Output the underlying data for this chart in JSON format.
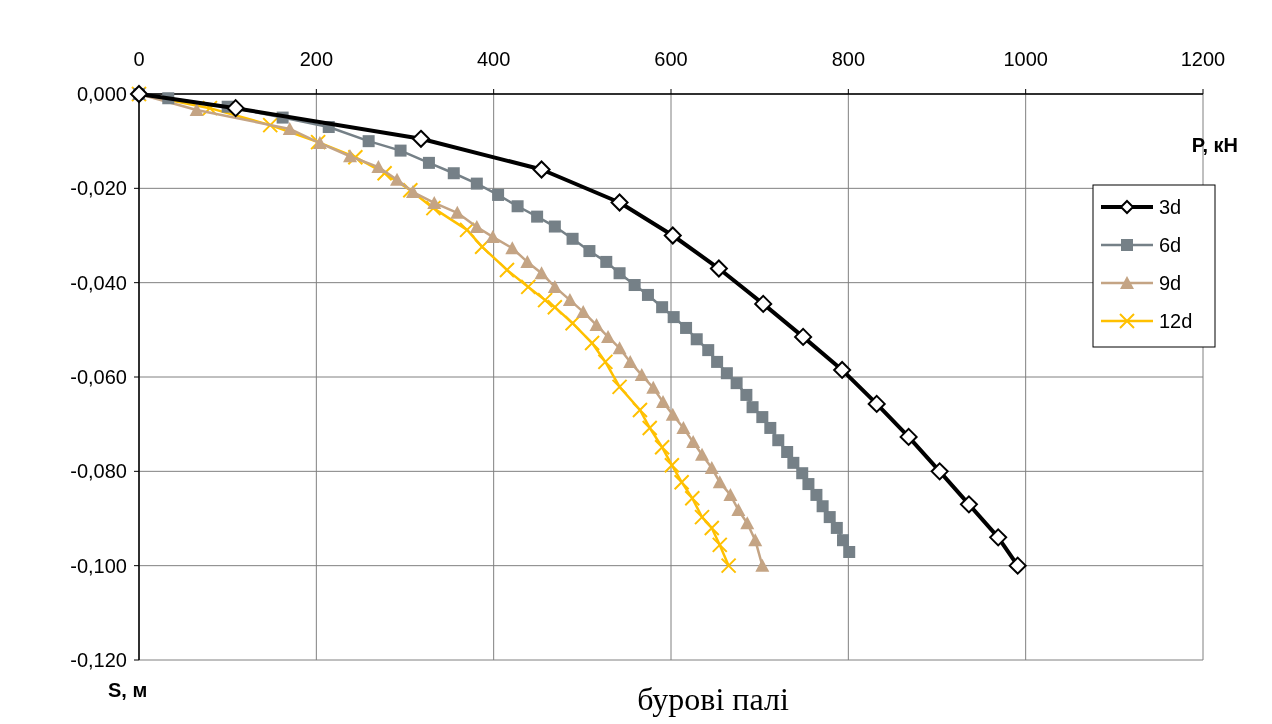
{
  "chart_data": {
    "type": "line",
    "title": "бурові палі",
    "xlabel": "P, кН",
    "ylabel": "S, м",
    "xlim": [
      0,
      1200
    ],
    "xticks": [
      0,
      200,
      400,
      600,
      800,
      1000,
      1200
    ],
    "ylim": [
      -0.12,
      0
    ],
    "yticks": [
      {
        "value": 0,
        "label": "0,000"
      },
      {
        "value": -0.02,
        "label": "-0,020"
      },
      {
        "value": -0.04,
        "label": "-0,040"
      },
      {
        "value": -0.06,
        "label": "-0,060"
      },
      {
        "value": -0.08,
        "label": "-0,080"
      },
      {
        "value": -0.1,
        "label": "-0,100"
      },
      {
        "value": -0.12,
        "label": "-0,120"
      }
    ],
    "grid": true,
    "legend": "right",
    "series": [
      {
        "name": "3d",
        "color": "#000000",
        "marker": "diamond",
        "x": [
          0,
          109,
          318,
          454,
          542,
          602,
          654,
          704,
          749,
          793,
          832,
          868,
          903,
          936,
          969,
          991
        ],
        "values": [
          0,
          -0.003,
          -0.0095,
          -0.016,
          -0.023,
          -0.03,
          -0.037,
          -0.0445,
          -0.0515,
          -0.0585,
          -0.0657,
          -0.0727,
          -0.08,
          -0.087,
          -0.094,
          -0.1
        ]
      },
      {
        "name": "6d",
        "color": "#758087",
        "marker": "square",
        "x": [
          0,
          33,
          100,
          162,
          214,
          259,
          295,
          327,
          355,
          381,
          405,
          427,
          449,
          469,
          489,
          508,
          527,
          542,
          559,
          574,
          590,
          603,
          617,
          629,
          642,
          652,
          663,
          674,
          685,
          692,
          703,
          712,
          721,
          731,
          738,
          748,
          755,
          764,
          771,
          779,
          787,
          794,
          801
        ],
        "values": [
          0,
          -0.0009,
          -0.0027,
          -0.005,
          -0.007,
          -0.01,
          -0.012,
          -0.0146,
          -0.0168,
          -0.019,
          -0.0214,
          -0.0238,
          -0.026,
          -0.0281,
          -0.0307,
          -0.0333,
          -0.0356,
          -0.038,
          -0.0405,
          -0.0426,
          -0.0452,
          -0.0473,
          -0.0496,
          -0.052,
          -0.0543,
          -0.0568,
          -0.0592,
          -0.0613,
          -0.0638,
          -0.0664,
          -0.0685,
          -0.0708,
          -0.0734,
          -0.0759,
          -0.0782,
          -0.0804,
          -0.0827,
          -0.085,
          -0.0874,
          -0.0897,
          -0.092,
          -0.0946,
          -0.0971
        ]
      },
      {
        "name": "9d",
        "color": "#c4a484",
        "marker": "triangle",
        "x": [
          0,
          65,
          170,
          204,
          238,
          270,
          291,
          309,
          333,
          359,
          381,
          399,
          421,
          438,
          454,
          469,
          486,
          501,
          516,
          529,
          542,
          554,
          567,
          580,
          591,
          602,
          614,
          625,
          635,
          646,
          655,
          667,
          676,
          686,
          695,
          703
        ],
        "values": [
          0,
          -0.0034,
          -0.0074,
          -0.0104,
          -0.0132,
          -0.0155,
          -0.0182,
          -0.0208,
          -0.0231,
          -0.0252,
          -0.0282,
          -0.0303,
          -0.0327,
          -0.0356,
          -0.038,
          -0.0409,
          -0.0437,
          -0.0462,
          -0.049,
          -0.0515,
          -0.0539,
          -0.0568,
          -0.0596,
          -0.0623,
          -0.0653,
          -0.068,
          -0.0708,
          -0.0738,
          -0.0765,
          -0.0793,
          -0.0823,
          -0.085,
          -0.0882,
          -0.091,
          -0.0946,
          -0.1
        ]
      },
      {
        "name": "12d",
        "color": "#ffc000",
        "marker": "cross",
        "x": [
          0,
          80,
          148,
          202,
          244,
          277,
          306,
          332,
          370,
          387,
          415,
          439,
          458,
          469,
          489,
          511,
          526,
          542,
          565,
          576,
          590,
          601,
          612,
          624,
          635,
          646,
          655,
          665
        ],
        "values": [
          0,
          -0.003,
          -0.0066,
          -0.0102,
          -0.0134,
          -0.0168,
          -0.0204,
          -0.0242,
          -0.0288,
          -0.0324,
          -0.0373,
          -0.0409,
          -0.0437,
          -0.0452,
          -0.0486,
          -0.0528,
          -0.0568,
          -0.0621,
          -0.067,
          -0.0708,
          -0.0749,
          -0.0787,
          -0.0823,
          -0.0857,
          -0.0897,
          -0.092,
          -0.0956,
          -0.1
        ]
      }
    ]
  }
}
